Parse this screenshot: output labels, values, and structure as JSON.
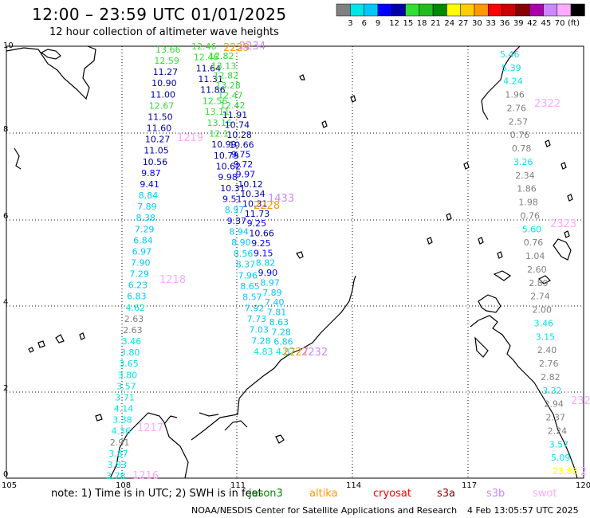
{
  "header": {
    "title": "12:00 – 23:59 UTC 01/01/2025",
    "subtitle": "12 hour collection of altimeter wave heights"
  },
  "colorbar": {
    "unit": "(ft)",
    "labels": [
      "3",
      "6",
      "9",
      "12",
      "15",
      "18",
      "21",
      "24",
      "27",
      "30",
      "33",
      "36",
      "39",
      "42",
      "45",
      "70"
    ],
    "colors": [
      "#808080",
      "#00e5e5",
      "#00c8ff",
      "#0000ff",
      "#0000aa",
      "#33dd33",
      "#22bb22",
      "#008800",
      "#ffff00",
      "#ffcc00",
      "#ff9900",
      "#ff0000",
      "#cc0000",
      "#880000",
      "#aa00aa",
      "#cc88ff",
      "#ffaaff",
      "#000000"
    ]
  },
  "axes": {
    "lon_labels": [
      "105",
      "108",
      "111",
      "114",
      "117",
      "120"
    ],
    "lat_labels": [
      "0",
      "2",
      "4",
      "6",
      "8",
      "10"
    ]
  },
  "footer": {
    "note": "note:  1) Time is in UTC;  2) SWH is in feet",
    "satellites": [
      {
        "name": "jason3",
        "color": "#008800"
      },
      {
        "name": "altika",
        "color": "#ff9900"
      },
      {
        "name": "cryosat",
        "color": "#ff0000"
      },
      {
        "name": "s3a",
        "color": "#880000"
      },
      {
        "name": "s3b",
        "color": "#cc88ff"
      },
      {
        "name": "swot",
        "color": "#ffaaff"
      }
    ],
    "credit": "NOAA/NESDIS Center for Satellite Applications and Research",
    "timestamp": "4 Feb 13:05:57 UTC 2025"
  },
  "pass_labels": [
    {
      "text": "2229",
      "color": "#ff9900"
    },
    {
      "text": "2234",
      "color": "#cc88ff"
    },
    {
      "text": "1219",
      "color": "#ffaaff"
    },
    {
      "text": "1433",
      "color": "#cc88ff"
    },
    {
      "text": "2228",
      "color": "#ff9900"
    },
    {
      "text": "1218",
      "color": "#ffaaff"
    },
    {
      "text": "2227",
      "color": "#ff9900"
    },
    {
      "text": "2232",
      "color": "#cc88ff"
    },
    {
      "text": "1217",
      "color": "#ffaaff"
    },
    {
      "text": "1216",
      "color": "#ffaaff"
    },
    {
      "text": "2322",
      "color": "#ffaaff"
    },
    {
      "text": "2323",
      "color": "#ffaaff"
    },
    {
      "text": "232",
      "color": "#ffaaff"
    },
    {
      "text": "2",
      "color": "#ffaaff"
    }
  ],
  "track_a": [
    {
      "v": "13.66",
      "c": "#33dd33"
    },
    {
      "v": "12.59",
      "c": "#33dd33"
    },
    {
      "v": "11.27",
      "c": "#0000aa"
    },
    {
      "v": "10.90",
      "c": "#0000aa"
    },
    {
      "v": "11.00",
      "c": "#0000aa"
    },
    {
      "v": "12.67",
      "c": "#33dd33"
    },
    {
      "v": "11.50",
      "c": "#0000aa"
    },
    {
      "v": "11.60",
      "c": "#0000aa"
    },
    {
      "v": "10.27",
      "c": "#0000aa"
    },
    {
      "v": "11.05",
      "c": "#0000aa"
    },
    {
      "v": "10.56",
      "c": "#0000aa"
    },
    {
      "v": "9.87",
      "c": "#0000ff"
    },
    {
      "v": "9.41",
      "c": "#0000ff"
    },
    {
      "v": "8.84",
      "c": "#00c8ff"
    },
    {
      "v": "7.89",
      "c": "#00c8ff"
    },
    {
      "v": "8.38",
      "c": "#00c8ff"
    },
    {
      "v": "7.29",
      "c": "#00c8ff"
    },
    {
      "v": "6.84",
      "c": "#00c8ff"
    },
    {
      "v": "6.97",
      "c": "#00c8ff"
    },
    {
      "v": "7.90",
      "c": "#00c8ff"
    },
    {
      "v": "7.29",
      "c": "#00c8ff"
    },
    {
      "v": "6.23",
      "c": "#00c8ff"
    },
    {
      "v": "6.83",
      "c": "#00c8ff"
    },
    {
      "v": "4.62",
      "c": "#00e5e5"
    },
    {
      "v": "2.63",
      "c": "#808080"
    },
    {
      "v": "2.63",
      "c": "#808080"
    },
    {
      "v": "3.46",
      "c": "#00e5e5"
    },
    {
      "v": "3.80",
      "c": "#00e5e5"
    },
    {
      "v": "3.65",
      "c": "#00e5e5"
    },
    {
      "v": "3.80",
      "c": "#00e5e5"
    },
    {
      "v": "3.57",
      "c": "#00e5e5"
    },
    {
      "v": "3.71",
      "c": "#00e5e5"
    },
    {
      "v": "4.14",
      "c": "#00e5e5"
    },
    {
      "v": "3.38",
      "c": "#00e5e5"
    },
    {
      "v": "4.36",
      "c": "#00e5e5"
    },
    {
      "v": "2.91",
      "c": "#808080"
    },
    {
      "v": "3.87",
      "c": "#00e5e5"
    },
    {
      "v": "3.83",
      "c": "#00e5e5"
    },
    {
      "v": "3.78",
      "c": "#00e5e5"
    }
  ],
  "track_b": [
    {
      "v": "12.46",
      "c": "#33dd33"
    },
    {
      "v": "12.46",
      "c": "#33dd33"
    },
    {
      "v": "11.64",
      "c": "#0000aa"
    },
    {
      "v": "11.31",
      "c": "#0000aa"
    },
    {
      "v": "11.86",
      "c": "#0000aa"
    },
    {
      "v": "12.56",
      "c": "#33dd33"
    },
    {
      "v": "13.11",
      "c": "#33dd33"
    },
    {
      "v": "13.16",
      "c": "#33dd33"
    },
    {
      "v": "12.1",
      "c": "#33dd33"
    },
    {
      "v": "10.99",
      "c": "#0000aa"
    },
    {
      "v": "10.79",
      "c": "#0000aa"
    },
    {
      "v": "10.62",
      "c": "#0000aa"
    },
    {
      "v": "9.98",
      "c": "#0000ff"
    },
    {
      "v": "10.31",
      "c": "#0000aa"
    },
    {
      "v": "9.51",
      "c": "#0000ff"
    },
    {
      "v": "8.97",
      "c": "#00c8ff"
    },
    {
      "v": "9.37",
      "c": "#0000ff"
    },
    {
      "v": "8.94",
      "c": "#00c8ff"
    },
    {
      "v": "8.90",
      "c": "#00c8ff"
    },
    {
      "v": "8.56",
      "c": "#00c8ff"
    },
    {
      "v": "8.37",
      "c": "#00c8ff"
    },
    {
      "v": "7.96",
      "c": "#00c8ff"
    },
    {
      "v": "8.65",
      "c": "#00c8ff"
    },
    {
      "v": "8.57",
      "c": "#00c8ff"
    },
    {
      "v": "7.92",
      "c": "#00c8ff"
    },
    {
      "v": "7.73",
      "c": "#00c8ff"
    },
    {
      "v": "7.03",
      "c": "#00c8ff"
    },
    {
      "v": "7.28",
      "c": "#00c8ff"
    },
    {
      "v": "4.83",
      "c": "#00e5e5"
    }
  ],
  "track_c": [
    {
      "v": "12.82",
      "c": "#33dd33"
    },
    {
      "v": "13.13",
      "c": "#33dd33"
    },
    {
      "v": "12.82",
      "c": "#33dd33"
    },
    {
      "v": "13.28",
      "c": "#33dd33"
    },
    {
      "v": "12.47",
      "c": "#33dd33"
    },
    {
      "v": "12.42",
      "c": "#33dd33"
    },
    {
      "v": "11.91",
      "c": "#0000aa"
    },
    {
      "v": "10.74",
      "c": "#0000aa"
    },
    {
      "v": "10.28",
      "c": "#0000aa"
    },
    {
      "v": "10.66",
      "c": "#0000aa"
    },
    {
      "v": "9.75",
      "c": "#0000ff"
    },
    {
      "v": "9.72",
      "c": "#0000ff"
    },
    {
      "v": "9.97",
      "c": "#0000ff"
    },
    {
      "v": "10.12",
      "c": "#0000aa"
    },
    {
      "v": "10.34",
      "c": "#0000aa"
    },
    {
      "v": "10.31",
      "c": "#0000aa"
    },
    {
      "v": "11.73",
      "c": "#0000aa"
    },
    {
      "v": "9.25",
      "c": "#0000ff"
    },
    {
      "v": "10.66",
      "c": "#0000aa"
    },
    {
      "v": "9.25",
      "c": "#0000ff"
    },
    {
      "v": "9.15",
      "c": "#0000ff"
    },
    {
      "v": "8.82",
      "c": "#00c8ff"
    },
    {
      "v": "9.90",
      "c": "#0000ff"
    },
    {
      "v": "8.97",
      "c": "#00c8ff"
    },
    {
      "v": "7.89",
      "c": "#00c8ff"
    },
    {
      "v": "7.40",
      "c": "#00c8ff"
    },
    {
      "v": "7.81",
      "c": "#00c8ff"
    },
    {
      "v": "8.63",
      "c": "#00c8ff"
    },
    {
      "v": "7.28",
      "c": "#00c8ff"
    },
    {
      "v": "6.86",
      "c": "#00c8ff"
    },
    {
      "v": "4.87",
      "c": "#00e5e5"
    }
  ],
  "track_d": [
    {
      "v": "5.46",
      "c": "#00e5e5"
    },
    {
      "v": "5.39",
      "c": "#00e5e5"
    },
    {
      "v": "4.24",
      "c": "#00e5e5"
    },
    {
      "v": "1.96",
      "c": "#808080"
    },
    {
      "v": "2.76",
      "c": "#808080"
    },
    {
      "v": "2.57",
      "c": "#808080"
    },
    {
      "v": "0.76",
      "c": "#808080"
    },
    {
      "v": "0.78",
      "c": "#808080"
    },
    {
      "v": "3.26",
      "c": "#00e5e5"
    },
    {
      "v": "2.34",
      "c": "#808080"
    },
    {
      "v": "1.86",
      "c": "#808080"
    },
    {
      "v": "1.98",
      "c": "#808080"
    },
    {
      "v": "0.76",
      "c": "#808080"
    },
    {
      "v": "5.60",
      "c": "#00e5e5"
    },
    {
      "v": "0.76",
      "c": "#808080"
    },
    {
      "v": "1.04",
      "c": "#808080"
    },
    {
      "v": "2.60",
      "c": "#808080"
    },
    {
      "v": "2.89",
      "c": "#808080"
    },
    {
      "v": "2.74",
      "c": "#808080"
    },
    {
      "v": "2.00",
      "c": "#808080"
    },
    {
      "v": "3.46",
      "c": "#00e5e5"
    },
    {
      "v": "3.15",
      "c": "#00e5e5"
    },
    {
      "v": "2.40",
      "c": "#808080"
    },
    {
      "v": "2.76",
      "c": "#808080"
    },
    {
      "v": "2.82",
      "c": "#808080"
    },
    {
      "v": "3.32",
      "c": "#00e5e5"
    },
    {
      "v": "2.94",
      "c": "#808080"
    },
    {
      "v": "2.37",
      "c": "#808080"
    },
    {
      "v": "2.24",
      "c": "#808080"
    },
    {
      "v": "3.57",
      "c": "#00e5e5"
    },
    {
      "v": "5.09",
      "c": "#00e5e5"
    },
    {
      "v": "23.88",
      "c": "#ffff00"
    }
  ]
}
